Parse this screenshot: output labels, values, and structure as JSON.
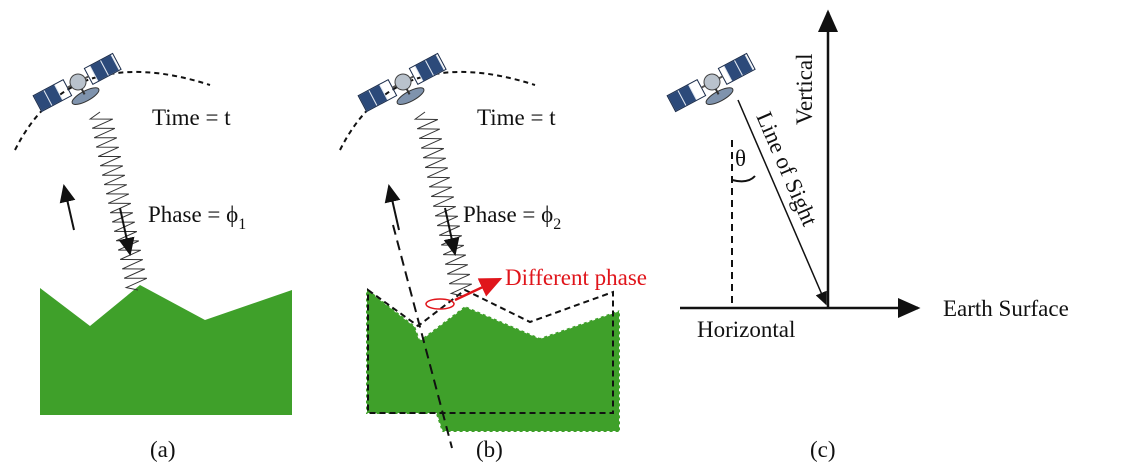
{
  "panels": [
    {
      "time_label": "Time = t",
      "phase_label": "Phase = ϕ",
      "phase_subscript": "1",
      "caption": "(a)"
    },
    {
      "time_label": "Time = t",
      "phase_label": "Phase = ϕ",
      "phase_subscript": "2",
      "annotation": "Different phase",
      "caption": "(b)"
    },
    {
      "vertical_label": "Vertical",
      "line_of_sight_label": "Line of Sight",
      "angle_label": "θ",
      "horizontal_label": "Horizontal",
      "surface_label": "Earth Surface",
      "caption": "(c)"
    }
  ]
}
